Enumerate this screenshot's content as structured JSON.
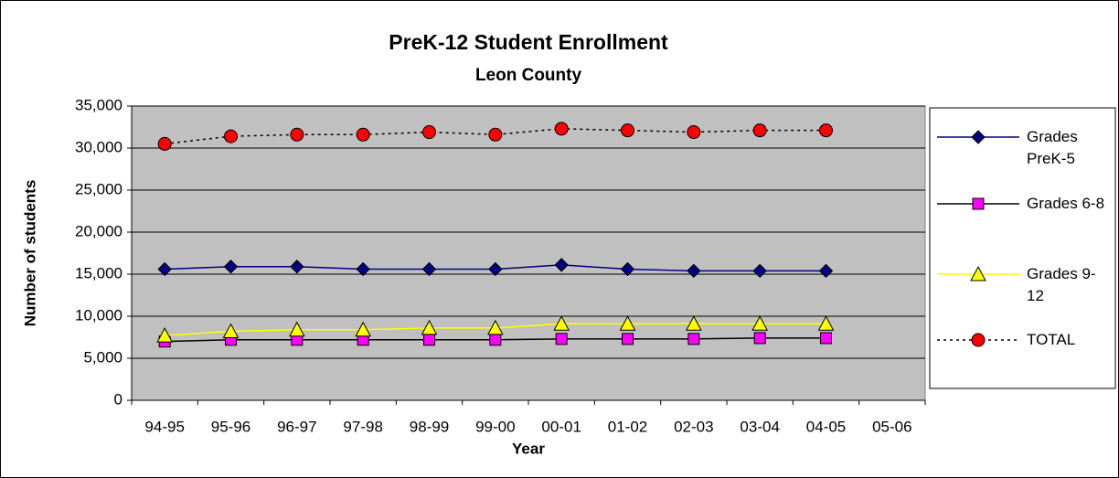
{
  "chart_data": {
    "type": "line",
    "title": "PreK-12 Student Enrollment",
    "subtitle": "Leon County",
    "x_label": "Year",
    "y_label": "Number of students",
    "categories": [
      "94-95",
      "95-96",
      "96-97",
      "97-98",
      "98-99",
      "99-00",
      "00-01",
      "01-02",
      "02-03",
      "03-04",
      "04-05",
      "05-06"
    ],
    "series": [
      {
        "name": "Grades PreK-5",
        "color": "#000080",
        "marker": "diamond",
        "marker_color": "#000080",
        "dashed": false,
        "values": [
          15600,
          15900,
          15900,
          15600,
          15600,
          15600,
          16100,
          15600,
          15400,
          15400,
          15400,
          null
        ]
      },
      {
        "name": "Grades 6-8",
        "color": "#000000",
        "marker": "square",
        "marker_color": "#ff00ff",
        "dashed": false,
        "values": [
          7000,
          7200,
          7200,
          7200,
          7200,
          7200,
          7300,
          7300,
          7300,
          7400,
          7400,
          null
        ]
      },
      {
        "name": "Grades 9-12",
        "color": "#ffff00",
        "marker": "triangle",
        "marker_color": "#ffff00",
        "dashed": false,
        "values": [
          7700,
          8200,
          8400,
          8400,
          8600,
          8600,
          9100,
          9100,
          9100,
          9100,
          9100,
          null
        ]
      },
      {
        "name": "TOTAL",
        "color": "#000000",
        "marker": "circle",
        "marker_color": "#ff0000",
        "dashed": true,
        "values": [
          30500,
          31400,
          31600,
          31600,
          31900,
          31600,
          32300,
          32100,
          31900,
          32100,
          32100,
          null
        ]
      }
    ],
    "ylim": [
      0,
      35000
    ],
    "yticks": [
      0,
      {
        "value": 5000,
        "label": "5,000"
      },
      {
        "value": 10000,
        "label": "10,000"
      },
      {
        "value": 15000,
        "label": "15,000"
      },
      {
        "value": 20000,
        "label": "20,000"
      },
      {
        "value": 25000,
        "label": "25,000"
      },
      {
        "value": 30000,
        "label": "30,000"
      },
      {
        "value": 35000,
        "label": "35,000"
      }
    ],
    "grid": true,
    "plot_background": "#c0c0c0",
    "legend": "right"
  }
}
